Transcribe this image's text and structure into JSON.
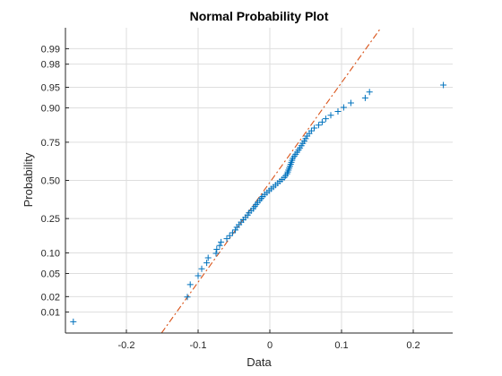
{
  "chart_data": {
    "type": "scatter",
    "title": "Normal Probability Plot",
    "xlabel": "Data",
    "ylabel": "Probability",
    "xlim": [
      -0.285,
      0.255
    ],
    "ylim": [
      0.0035,
      0.9965
    ],
    "x_ticks": [
      -0.2,
      -0.1,
      0,
      0.1,
      0.2
    ],
    "x_tick_labels": [
      "-0.2",
      "-0.1",
      "0",
      "0.1",
      "0.2"
    ],
    "y_ticks": [
      0.01,
      0.02,
      0.05,
      0.1,
      0.25,
      0.5,
      0.75,
      0.9,
      0.95,
      0.98,
      0.99
    ],
    "y_tick_labels": [
      "0.01",
      "0.02",
      "0.05",
      "0.10",
      "0.25",
      "0.50",
      "0.75",
      "0.90",
      "0.95",
      "0.98",
      "0.99"
    ],
    "y_scale": "normal probability",
    "grid": true,
    "marker_color": "#0072BD",
    "line_color": "#D95319",
    "reference_line": {
      "style": "dash-dot",
      "x": [
        -0.151,
        0.155
      ],
      "probability": [
        0.0035,
        0.9965
      ]
    },
    "series": [
      {
        "marker": "+",
        "points": [
          [
            -0.274,
            0.00625
          ],
          [
            -0.115,
            0.0197
          ],
          [
            -0.111,
            0.0329
          ],
          [
            -0.1,
            0.0461
          ],
          [
            -0.095,
            0.0592
          ],
          [
            -0.088,
            0.0724
          ],
          [
            -0.086,
            0.0855
          ],
          [
            -0.075,
            0.0987
          ],
          [
            -0.074,
            0.1118
          ],
          [
            -0.07,
            0.125
          ],
          [
            -0.068,
            0.1382
          ],
          [
            -0.06,
            0.1513
          ],
          [
            -0.056,
            0.1645
          ],
          [
            -0.052,
            0.1776
          ],
          [
            -0.048,
            0.1908
          ],
          [
            -0.046,
            0.2039
          ],
          [
            -0.043,
            0.2171
          ],
          [
            -0.04,
            0.2303
          ],
          [
            -0.037,
            0.2434
          ],
          [
            -0.034,
            0.2566
          ],
          [
            -0.031,
            0.2697
          ],
          [
            -0.029,
            0.2829
          ],
          [
            -0.026,
            0.2961
          ],
          [
            -0.023,
            0.3092
          ],
          [
            -0.021,
            0.3224
          ],
          [
            -0.019,
            0.3355
          ],
          [
            -0.017,
            0.3487
          ],
          [
            -0.014,
            0.3618
          ],
          [
            -0.012,
            0.375
          ],
          [
            -0.01,
            0.3882
          ],
          [
            -0.007,
            0.4013
          ],
          [
            -0.004,
            0.4145
          ],
          [
            -0.001,
            0.4276
          ],
          [
            0.002,
            0.4408
          ],
          [
            0.005,
            0.4539
          ],
          [
            0.008,
            0.4671
          ],
          [
            0.011,
            0.4803
          ],
          [
            0.014,
            0.4934
          ],
          [
            0.017,
            0.5066
          ],
          [
            0.02,
            0.5197
          ],
          [
            0.022,
            0.5329
          ],
          [
            0.024,
            0.5461
          ],
          [
            0.025,
            0.5592
          ],
          [
            0.026,
            0.5724
          ],
          [
            0.027,
            0.5855
          ],
          [
            0.028,
            0.5987
          ],
          [
            0.029,
            0.6118
          ],
          [
            0.03,
            0.625
          ],
          [
            0.031,
            0.6382
          ],
          [
            0.032,
            0.6513
          ],
          [
            0.034,
            0.6645
          ],
          [
            0.036,
            0.6776
          ],
          [
            0.038,
            0.6908
          ],
          [
            0.04,
            0.7039
          ],
          [
            0.042,
            0.7171
          ],
          [
            0.044,
            0.7303
          ],
          [
            0.046,
            0.7434
          ],
          [
            0.048,
            0.7566
          ],
          [
            0.05,
            0.7697
          ],
          [
            0.052,
            0.7829
          ],
          [
            0.055,
            0.7961
          ],
          [
            0.058,
            0.8092
          ],
          [
            0.062,
            0.8224
          ],
          [
            0.068,
            0.8355
          ],
          [
            0.073,
            0.8487
          ],
          [
            0.078,
            0.8618
          ],
          [
            0.085,
            0.875
          ],
          [
            0.095,
            0.8882
          ],
          [
            0.103,
            0.9013
          ],
          [
            0.113,
            0.9145
          ],
          [
            0.133,
            0.9276
          ],
          [
            0.139,
            0.9408
          ],
          [
            0.242,
            0.9539
          ]
        ]
      }
    ]
  }
}
